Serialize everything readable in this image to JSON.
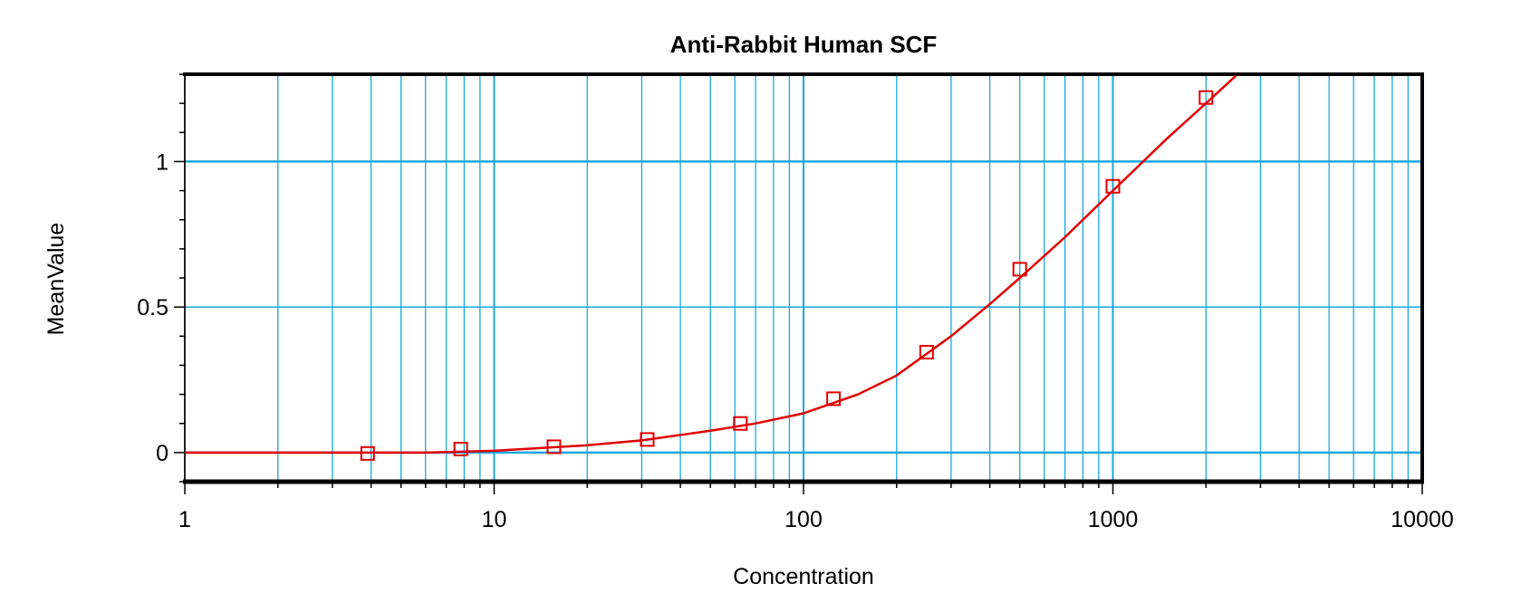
{
  "chart_data": {
    "type": "scatter",
    "title": "Anti-Rabbit Human SCF",
    "xlabel": "Concentration",
    "ylabel": "MeanValue",
    "x_scale": "log",
    "xlim": [
      1,
      10000
    ],
    "ylim": [
      -0.1,
      1.3
    ],
    "x_ticks": [
      "1",
      "10",
      "100",
      "1000",
      "10000"
    ],
    "y_ticks": [
      "0",
      "0.5",
      "1"
    ],
    "grid": true,
    "colors": {
      "series": "#e00000",
      "grid": "#1aa7e0",
      "axis": "#000000"
    },
    "series": [
      {
        "marker": "square",
        "x": [
          3.9,
          7.8,
          15.6,
          31.25,
          62.5,
          125,
          250,
          500,
          1000,
          2000
        ],
        "y": [
          -0.003,
          0.012,
          0.02,
          0.045,
          0.1,
          0.185,
          0.345,
          0.63,
          0.915,
          1.22
        ]
      }
    ],
    "fit_curve": {
      "x": [
        1,
        6,
        10,
        20,
        30,
        50,
        70,
        100,
        150,
        200,
        300,
        400,
        500,
        700,
        1000,
        1500,
        2000,
        2500
      ],
      "y": [
        0,
        0,
        0.006,
        0.025,
        0.042,
        0.075,
        0.1,
        0.135,
        0.2,
        0.265,
        0.4,
        0.51,
        0.6,
        0.74,
        0.9,
        1.08,
        1.2,
        1.295
      ]
    }
  }
}
